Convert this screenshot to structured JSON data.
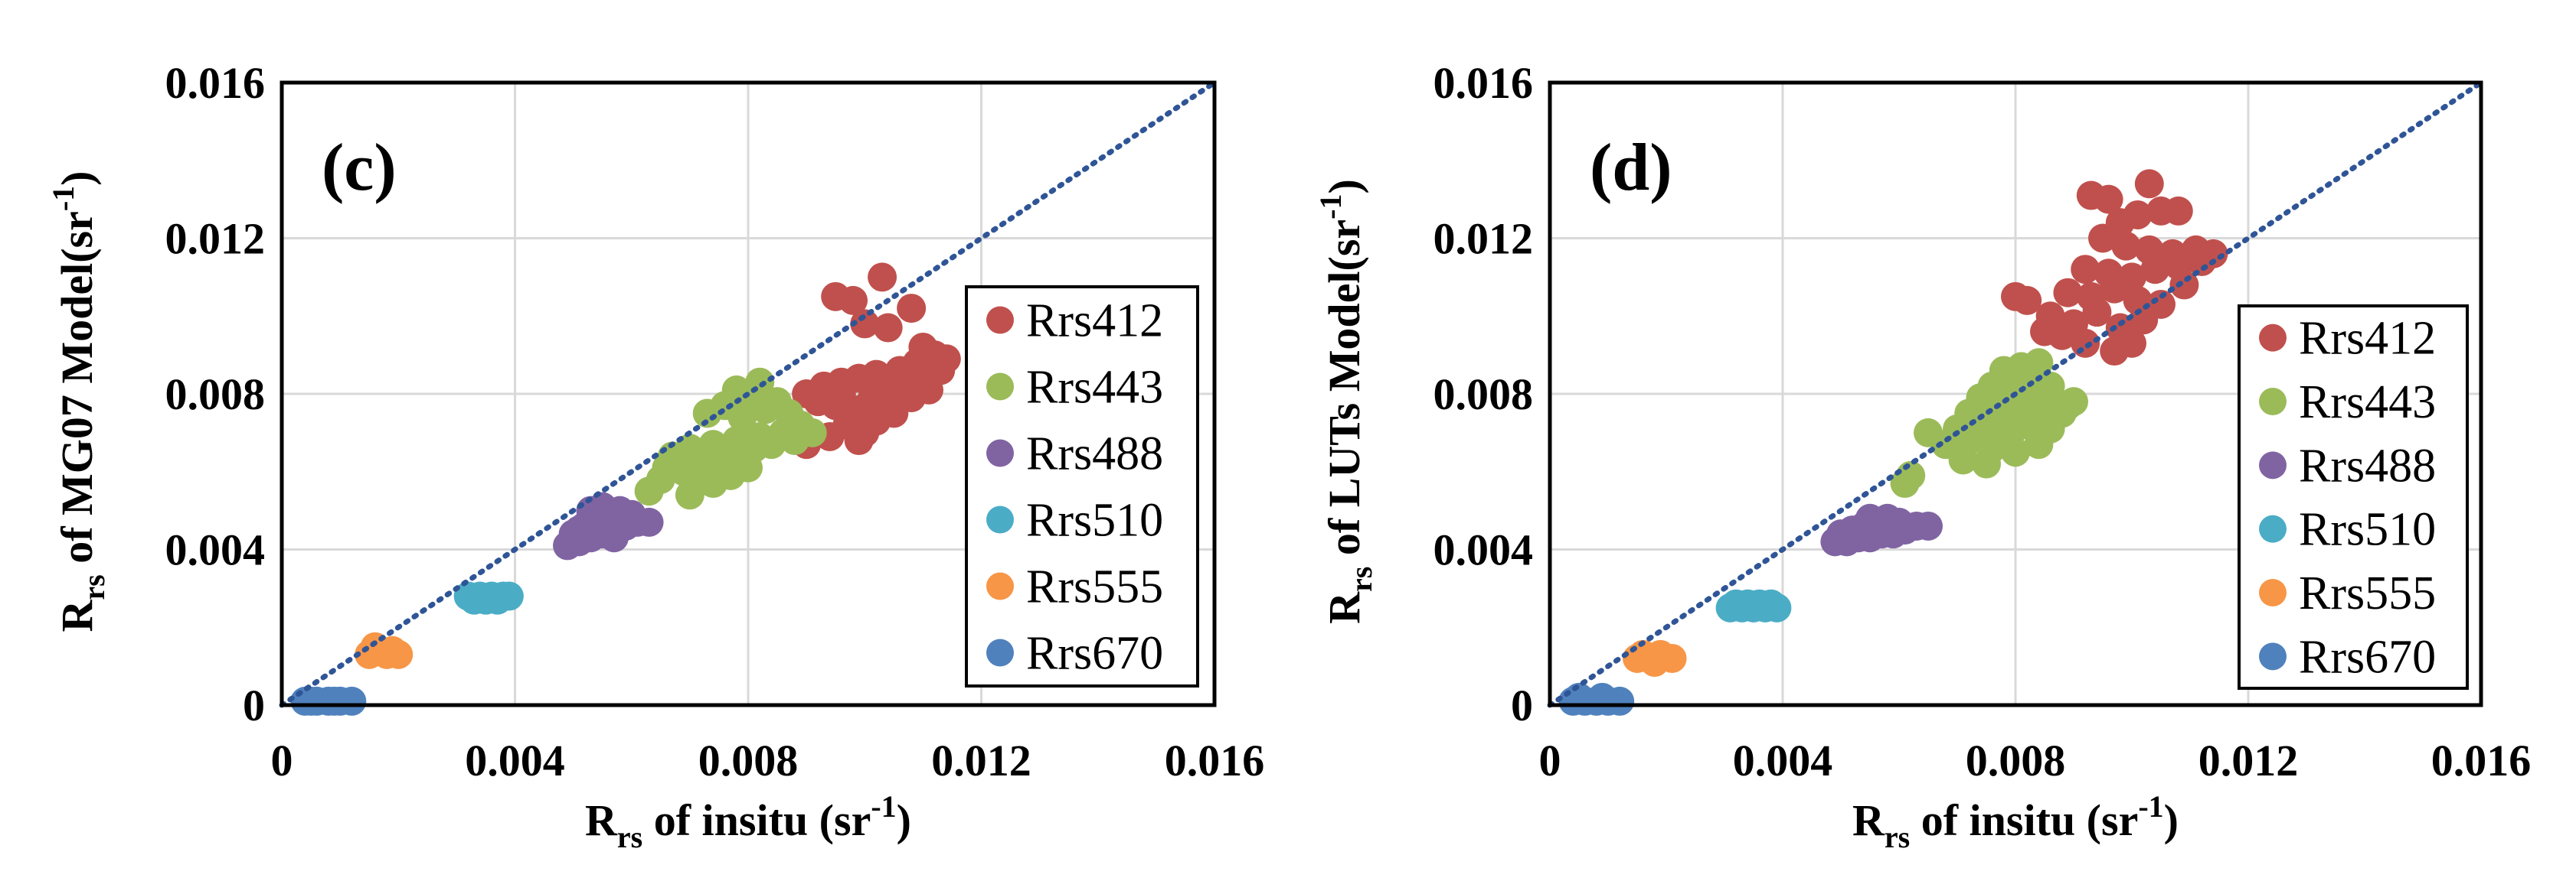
{
  "colors": {
    "Rrs412": "#c0504d",
    "Rrs443": "#9bbb59",
    "Rrs488": "#8064a2",
    "Rrs510": "#4bacc6",
    "Rrs555": "#f79646",
    "Rrs670": "#4f81bd",
    "one_to_one": "#2f5597",
    "grid": "#d9d9d9",
    "frame": "#000000"
  },
  "chart_data": [
    {
      "type": "scatter",
      "panel_label": "(c)",
      "xlabel": {
        "main": "R",
        "sub": "rs",
        "rest": " of insitu (sr",
        "sup": "-1",
        "end": ")"
      },
      "ylabel": {
        "main": "R",
        "sub": "rs",
        "rest": " of MG07 Model(sr",
        "sup": "-1",
        "end": ")"
      },
      "xlim": [
        0,
        0.016
      ],
      "ylim": [
        0,
        0.016
      ],
      "x_ticks": [
        "0",
        "0.004",
        "0.008",
        "0.012",
        "0.016"
      ],
      "y_ticks": [
        "0",
        "0.004",
        "0.008",
        "0.012",
        "0.016"
      ],
      "grid": true,
      "one_to_one_line": true,
      "legend_position": "lower-right",
      "series": [
        {
          "name": "Rrs412",
          "points": [
            [
              0.0095,
              0.0105
            ],
            [
              0.0098,
              0.0104
            ],
            [
              0.0103,
              0.011
            ],
            [
              0.0108,
              0.0102
            ],
            [
              0.01,
              0.0098
            ],
            [
              0.0104,
              0.0097
            ],
            [
              0.011,
              0.0092
            ],
            [
              0.0112,
              0.009
            ],
            [
              0.0114,
              0.0089
            ],
            [
              0.0109,
              0.0088
            ],
            [
              0.0106,
              0.0086
            ],
            [
              0.0102,
              0.0085
            ],
            [
              0.0099,
              0.0084
            ],
            [
              0.0096,
              0.0083
            ],
            [
              0.0093,
              0.0082
            ],
            [
              0.009,
              0.008
            ],
            [
              0.0092,
              0.0078
            ],
            [
              0.0095,
              0.0077
            ],
            [
              0.0098,
              0.0076
            ],
            [
              0.0101,
              0.0078
            ],
            [
              0.0104,
              0.008
            ],
            [
              0.0107,
              0.0082
            ],
            [
              0.011,
              0.0084
            ],
            [
              0.0113,
              0.0086
            ],
            [
              0.0097,
              0.0072
            ],
            [
              0.01,
              0.007
            ],
            [
              0.0094,
              0.0069
            ],
            [
              0.009,
              0.0067
            ],
            [
              0.0089,
              0.0071
            ],
            [
              0.0105,
              0.0075
            ],
            [
              0.0108,
              0.0079
            ],
            [
              0.0111,
              0.0081
            ],
            [
              0.0096,
              0.008
            ],
            [
              0.0099,
              0.0068
            ],
            [
              0.0102,
              0.0073
            ]
          ]
        },
        {
          "name": "Rrs443",
          "points": [
            [
              0.0078,
              0.0081
            ],
            [
              0.0082,
              0.0083
            ],
            [
              0.008,
              0.0079
            ],
            [
              0.0085,
              0.0078
            ],
            [
              0.0076,
              0.0077
            ],
            [
              0.0073,
              0.0075
            ],
            [
              0.0079,
              0.0074
            ],
            [
              0.0083,
              0.0076
            ],
            [
              0.0087,
              0.0075
            ],
            [
              0.0089,
              0.0072
            ],
            [
              0.0086,
              0.007
            ],
            [
              0.0082,
              0.0069
            ],
            [
              0.0078,
              0.0068
            ],
            [
              0.0074,
              0.0067
            ],
            [
              0.007,
              0.0066
            ],
            [
              0.0067,
              0.0064
            ],
            [
              0.0066,
              0.0061
            ],
            [
              0.0069,
              0.006
            ],
            [
              0.0072,
              0.0062
            ],
            [
              0.0075,
              0.0063
            ],
            [
              0.0078,
              0.0064
            ],
            [
              0.0081,
              0.0066
            ],
            [
              0.0084,
              0.0067
            ],
            [
              0.0071,
              0.0058
            ],
            [
              0.0074,
              0.0057
            ],
            [
              0.007,
              0.0054
            ],
            [
              0.0077,
              0.0059
            ],
            [
              0.008,
              0.0061
            ],
            [
              0.0063,
              0.0055
            ],
            [
              0.0065,
              0.0058
            ],
            [
              0.0088,
              0.0068
            ],
            [
              0.0091,
              0.007
            ]
          ]
        },
        {
          "name": "Rrs488",
          "points": [
            [
              0.0049,
              0.0041
            ],
            [
              0.0051,
              0.0042
            ],
            [
              0.0053,
              0.0043
            ],
            [
              0.0055,
              0.0044
            ],
            [
              0.0057,
              0.0045
            ],
            [
              0.0059,
              0.0046
            ],
            [
              0.0061,
              0.0047
            ],
            [
              0.0063,
              0.0047
            ],
            [
              0.005,
              0.0044
            ],
            [
              0.0052,
              0.0046
            ],
            [
              0.0054,
              0.0048
            ],
            [
              0.0056,
              0.0049
            ],
            [
              0.0058,
              0.005
            ],
            [
              0.0055,
              0.0051
            ],
            [
              0.006,
              0.0049
            ],
            [
              0.0053,
              0.005
            ],
            [
              0.0057,
              0.0043
            ],
            [
              0.0051,
              0.0045
            ]
          ]
        },
        {
          "name": "Rrs510",
          "points": [
            [
              0.0032,
              0.0028
            ],
            [
              0.0034,
              0.0028
            ],
            [
              0.0036,
              0.0028
            ],
            [
              0.0038,
              0.0028
            ],
            [
              0.0033,
              0.0027
            ],
            [
              0.0035,
              0.0027
            ],
            [
              0.0037,
              0.0027
            ],
            [
              0.0039,
              0.0028
            ]
          ]
        },
        {
          "name": "Rrs555",
          "points": [
            [
              0.0015,
              0.0013
            ],
            [
              0.0017,
              0.0014
            ],
            [
              0.0019,
              0.0014
            ],
            [
              0.002,
              0.0013
            ],
            [
              0.0016,
              0.0015
            ],
            [
              0.0018,
              0.0013
            ]
          ]
        },
        {
          "name": "Rrs670",
          "points": [
            [
              0.0004,
              0.0001
            ],
            [
              0.0006,
              0.0001
            ],
            [
              0.0008,
              0.0001
            ],
            [
              0.001,
              0.0001
            ],
            [
              0.0012,
              0.0001
            ],
            [
              0.0005,
              0.0001
            ],
            [
              0.0009,
              0.0001
            ]
          ]
        }
      ]
    },
    {
      "type": "scatter",
      "panel_label": "(d)",
      "xlabel": {
        "main": "R",
        "sub": "rs",
        "rest": " of insitu (sr",
        "sup": "-1",
        "end": ")"
      },
      "ylabel": {
        "main": "R",
        "sub": "rs",
        "rest": " of LUTs Model(sr",
        "sup": "-1",
        "end": ")"
      },
      "xlim": [
        0,
        0.016
      ],
      "ylim": [
        0,
        0.016
      ],
      "x_ticks": [
        "0",
        "0.004",
        "0.008",
        "0.012",
        "0.016"
      ],
      "y_ticks": [
        "0",
        "0.004",
        "0.008",
        "0.012",
        "0.016"
      ],
      "grid": true,
      "one_to_one_line": true,
      "legend_position": "lower-right",
      "series": [
        {
          "name": "Rrs412",
          "points": [
            [
              0.0093,
              0.0131
            ],
            [
              0.0096,
              0.013
            ],
            [
              0.0103,
              0.0134
            ],
            [
              0.0098,
              0.0124
            ],
            [
              0.0101,
              0.0126
            ],
            [
              0.0105,
              0.0127
            ],
            [
              0.0108,
              0.0127
            ],
            [
              0.0095,
              0.012
            ],
            [
              0.0099,
              0.0118
            ],
            [
              0.0103,
              0.0117
            ],
            [
              0.0107,
              0.0116
            ],
            [
              0.0111,
              0.0117
            ],
            [
              0.0114,
              0.0116
            ],
            [
              0.0092,
              0.0112
            ],
            [
              0.0096,
              0.0111
            ],
            [
              0.01,
              0.011
            ],
            [
              0.0104,
              0.0112
            ],
            [
              0.0108,
              0.0113
            ],
            [
              0.0112,
              0.0114
            ],
            [
              0.0089,
              0.0106
            ],
            [
              0.0093,
              0.0105
            ],
            [
              0.0097,
              0.0107
            ],
            [
              0.0101,
              0.0104
            ],
            [
              0.0105,
              0.0103
            ],
            [
              0.0109,
              0.0108
            ],
            [
              0.0086,
              0.01
            ],
            [
              0.009,
              0.0098
            ],
            [
              0.0094,
              0.0101
            ],
            [
              0.0098,
              0.0097
            ],
            [
              0.0102,
              0.0099
            ],
            [
              0.0082,
              0.0104
            ],
            [
              0.008,
              0.0105
            ],
            [
              0.0088,
              0.0095
            ],
            [
              0.0092,
              0.0093
            ],
            [
              0.0097,
              0.0091
            ],
            [
              0.01,
              0.0093
            ],
            [
              0.0085,
              0.0096
            ]
          ]
        },
        {
          "name": "Rrs443",
          "points": [
            [
              0.0078,
              0.0086
            ],
            [
              0.0081,
              0.0087
            ],
            [
              0.0084,
              0.0088
            ],
            [
              0.0076,
              0.0082
            ],
            [
              0.008,
              0.0083
            ],
            [
              0.0083,
              0.0084
            ],
            [
              0.0086,
              0.0082
            ],
            [
              0.0074,
              0.0079
            ],
            [
              0.0078,
              0.008
            ],
            [
              0.0082,
              0.0079
            ],
            [
              0.0086,
              0.0078
            ],
            [
              0.0089,
              0.0077
            ],
            [
              0.0072,
              0.0075
            ],
            [
              0.0076,
              0.0076
            ],
            [
              0.008,
              0.0075
            ],
            [
              0.0084,
              0.0074
            ],
            [
              0.0088,
              0.0075
            ],
            [
              0.007,
              0.0071
            ],
            [
              0.0074,
              0.0072
            ],
            [
              0.0078,
              0.0071
            ],
            [
              0.0082,
              0.0072
            ],
            [
              0.0086,
              0.0071
            ],
            [
              0.0068,
              0.0067
            ],
            [
              0.0072,
              0.0068
            ],
            [
              0.0076,
              0.0066
            ],
            [
              0.008,
              0.0065
            ],
            [
              0.0084,
              0.0067
            ],
            [
              0.0071,
              0.0063
            ],
            [
              0.0075,
              0.0062
            ],
            [
              0.0065,
              0.007
            ],
            [
              0.0062,
              0.0059
            ],
            [
              0.0061,
              0.0057
            ],
            [
              0.0079,
              0.0069
            ],
            [
              0.009,
              0.0078
            ]
          ]
        },
        {
          "name": "Rrs488",
          "points": [
            [
              0.0049,
              0.0042
            ],
            [
              0.0051,
              0.0042
            ],
            [
              0.0053,
              0.0043
            ],
            [
              0.0055,
              0.0043
            ],
            [
              0.0057,
              0.0044
            ],
            [
              0.0059,
              0.0044
            ],
            [
              0.0061,
              0.0045
            ],
            [
              0.0063,
              0.0046
            ],
            [
              0.0065,
              0.0046
            ],
            [
              0.005,
              0.0044
            ],
            [
              0.0052,
              0.0045
            ],
            [
              0.0054,
              0.0046
            ],
            [
              0.0056,
              0.0047
            ],
            [
              0.0058,
              0.0048
            ],
            [
              0.006,
              0.0047
            ],
            [
              0.0055,
              0.0048
            ]
          ]
        },
        {
          "name": "Rrs510",
          "points": [
            [
              0.0031,
              0.0025
            ],
            [
              0.0033,
              0.0025
            ],
            [
              0.0035,
              0.0025
            ],
            [
              0.0037,
              0.0025
            ],
            [
              0.0039,
              0.0025
            ],
            [
              0.0032,
              0.0026
            ],
            [
              0.0034,
              0.0026
            ],
            [
              0.0036,
              0.0026
            ],
            [
              0.0038,
              0.0026
            ]
          ]
        },
        {
          "name": "Rrs555",
          "points": [
            [
              0.0015,
              0.0012
            ],
            [
              0.0017,
              0.0012
            ],
            [
              0.0019,
              0.0013
            ],
            [
              0.0021,
              0.0012
            ],
            [
              0.0016,
              0.0013
            ],
            [
              0.0018,
              0.0011
            ]
          ]
        },
        {
          "name": "Rrs670",
          "points": [
            [
              0.0004,
              0.0001
            ],
            [
              0.0006,
              0.0001
            ],
            [
              0.0008,
              0.0001
            ],
            [
              0.001,
              0.0001
            ],
            [
              0.0012,
              0.0001
            ],
            [
              0.0005,
              0.0002
            ],
            [
              0.0009,
              0.0002
            ]
          ]
        }
      ]
    }
  ]
}
